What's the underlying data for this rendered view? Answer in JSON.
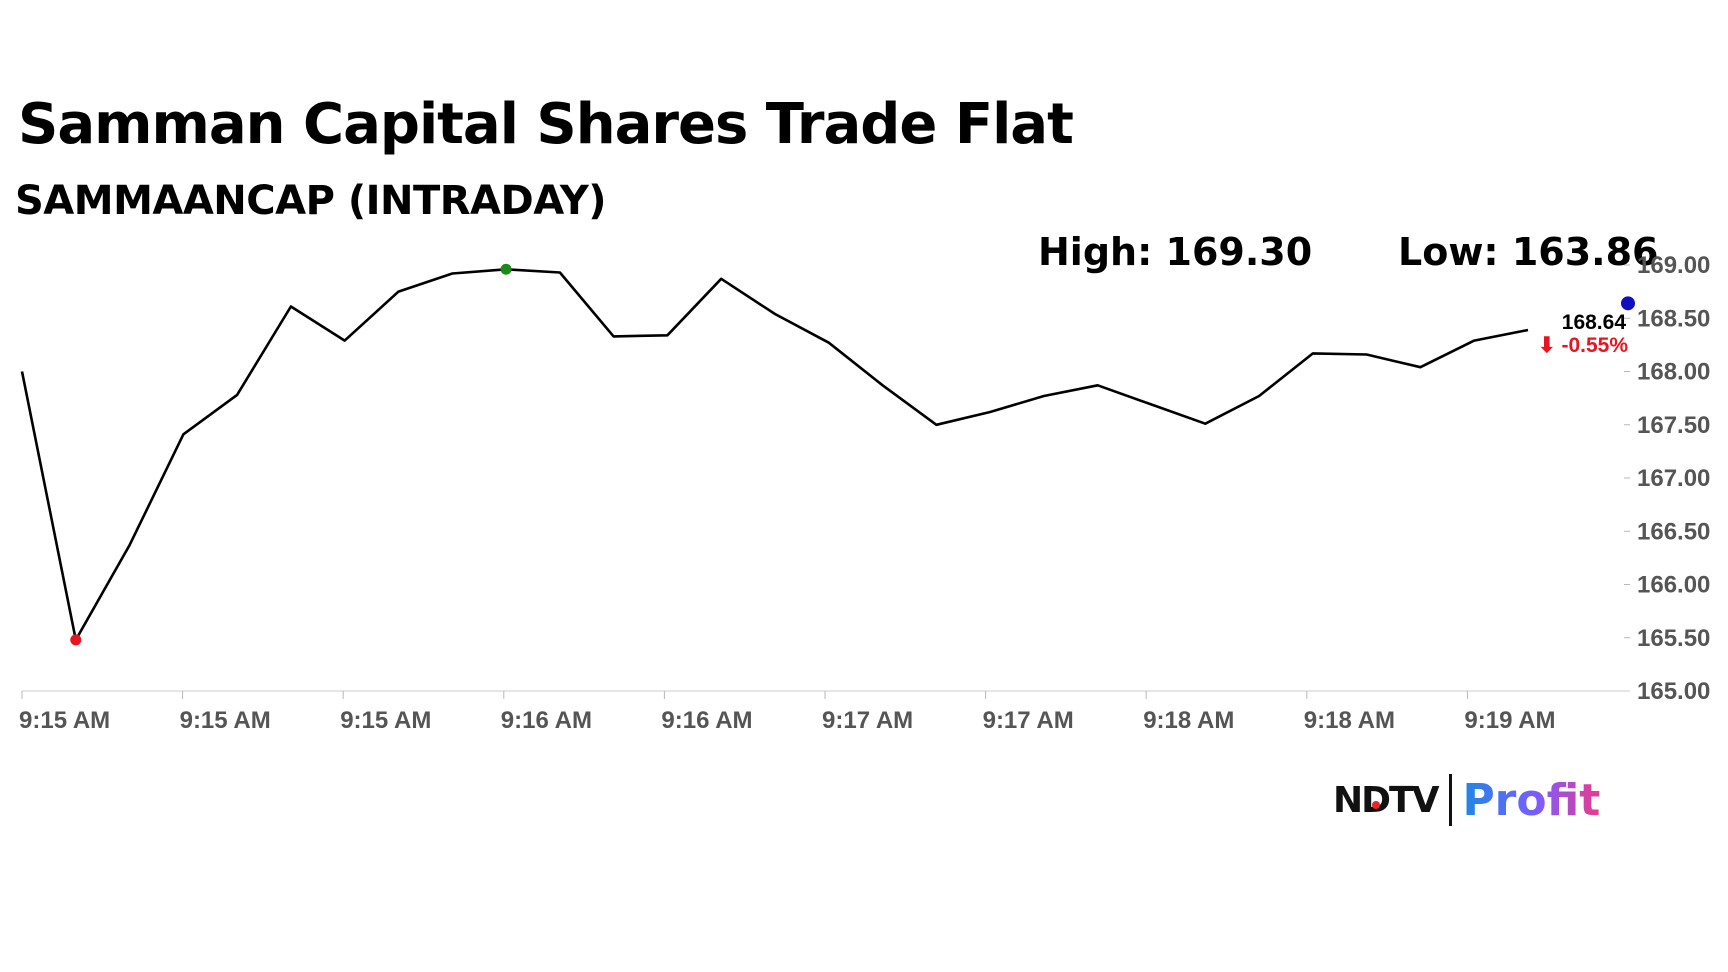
{
  "header": {
    "title": "Samman Capital Shares Trade Flat",
    "subtitle": "SAMMAANCAP (INTRADAY)",
    "high_label": "High: 169.30",
    "low_label": "Low: 163.86"
  },
  "last": {
    "price": "168.64",
    "change": "⬇ -0.55%",
    "change_color": "#e8141e"
  },
  "brand": {
    "ndtv": "NDTV",
    "profit": "Profit"
  },
  "colors": {
    "line": "#000000",
    "high_marker": "#1a8a1a",
    "low_marker": "#e8141e",
    "last_marker": "#1010c0",
    "axis_text": "#555555"
  },
  "chart_data": {
    "type": "line",
    "title": "Samman Capital Shares Trade Flat",
    "subtitle": "SAMMAANCAP (INTRADAY)",
    "x_tick_labels": [
      "9:15 AM",
      "9:15 AM",
      "9:15 AM",
      "9:16 AM",
      "9:16 AM",
      "9:17 AM",
      "9:17 AM",
      "9:18 AM",
      "9:18 AM",
      "9:19 AM"
    ],
    "y_tick_labels": [
      "169.00",
      "168.50",
      "168.00",
      "167.50",
      "167.00",
      "166.50",
      "166.00",
      "165.50",
      "165.00"
    ],
    "ylim": [
      165.0,
      169.0
    ],
    "y_axis_side": "right",
    "grid": false,
    "series": [
      {
        "values": [
          168.0,
          165.48,
          166.37,
          167.41,
          167.78,
          168.61,
          168.29,
          168.75,
          168.92,
          168.96,
          168.93,
          168.33,
          168.34,
          168.87,
          168.54,
          168.27,
          167.87,
          167.5,
          167.62,
          167.77,
          167.87,
          167.69,
          167.51,
          167.77,
          168.17,
          168.16,
          168.04,
          168.29,
          168.39
        ]
      }
    ],
    "markers": {
      "min_index": 1,
      "max_index": 9,
      "last_index": 28
    },
    "last_price": 168.64,
    "last_change": "-0.55%"
  }
}
